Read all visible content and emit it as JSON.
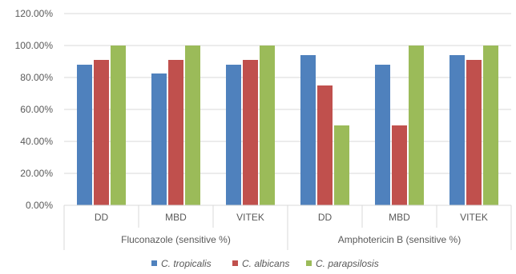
{
  "chart_data": {
    "type": "bar",
    "groups": [
      {
        "label": "Fluconazole (sensitive %)",
        "categories": [
          "DD",
          "MBD",
          "VITEK"
        ]
      },
      {
        "label": "Amphotericin B (sensitive %)",
        "categories": [
          "DD",
          "MBD",
          "VITEK"
        ]
      }
    ],
    "categories": [
      "DD",
      "MBD",
      "VITEK",
      "DD",
      "MBD",
      "VITEK"
    ],
    "series": [
      {
        "name": "C. tropicalis",
        "color": "#4f81bd",
        "values": [
          88,
          82.5,
          88,
          94,
          88,
          94
        ]
      },
      {
        "name": "C. albicans",
        "color": "#c0504d",
        "values": [
          91,
          91,
          91,
          75,
          50,
          91
        ]
      },
      {
        "name": "C. parapsilosis",
        "color": "#9bbb59",
        "values": [
          100,
          100,
          100,
          50,
          100,
          100
        ]
      }
    ],
    "ylim": [
      0,
      120
    ],
    "yticks": [
      "0.00%",
      "20.00%",
      "40.00%",
      "60.00%",
      "80.00%",
      "100.00%",
      "120.00%"
    ],
    "grid": true,
    "legend_position": "bottom"
  }
}
